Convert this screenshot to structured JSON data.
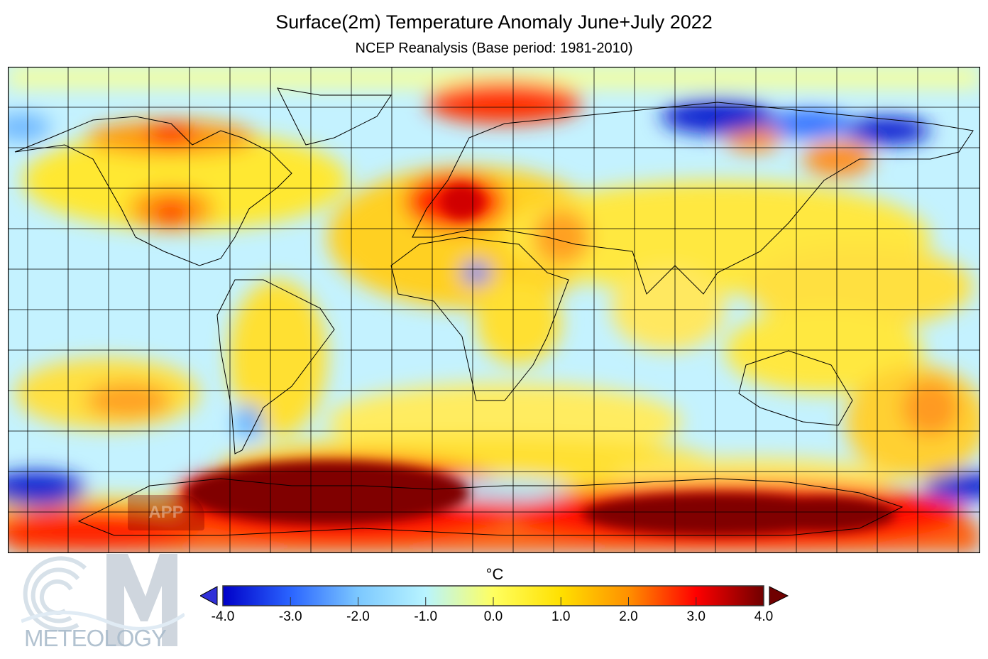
{
  "header": {
    "title": "Surface(2m) Temperature Anomaly June+July 2022",
    "subtitle": "NCEP Reanalysis (Base period: 1981-2010)"
  },
  "legend": {
    "unit": "°C",
    "ticks": [
      "-4.0",
      "-3.0",
      "-2.0",
      "-1.0",
      "0.0",
      "1.0",
      "2.0",
      "3.0",
      "4.0"
    ],
    "range": [
      -4.0,
      4.0
    ],
    "colors": [
      "#0000c8",
      "#2a64ff",
      "#7cc8ff",
      "#b8f4ff",
      "#ffff60",
      "#ffe000",
      "#ff9000",
      "#ff0000",
      "#700000"
    ]
  },
  "watermark": {
    "brand": "METEOLOGY",
    "badge": "APP"
  }
}
